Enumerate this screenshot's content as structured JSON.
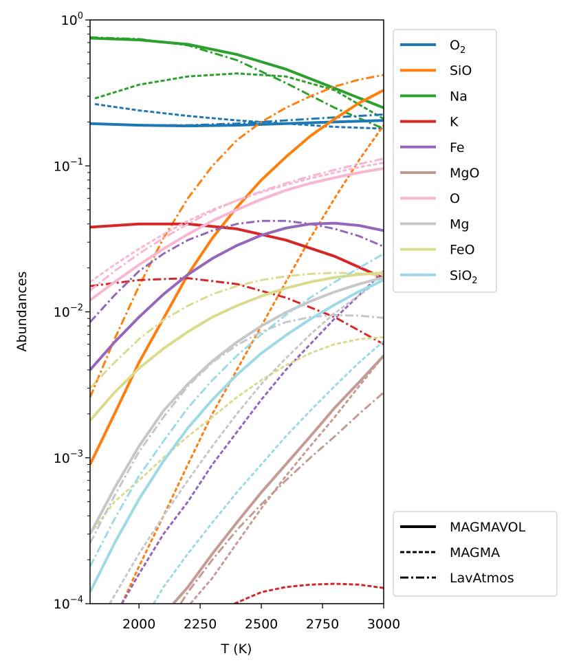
{
  "chart_data": {
    "type": "line",
    "title": "",
    "xlabel": "T (K)",
    "ylabel": "Abundances",
    "xlim": [
      1800,
      3000
    ],
    "ylim": [
      0.0001,
      1
    ],
    "yscale": "log",
    "grid": false,
    "x_ticks": [
      2000,
      2250,
      2500,
      2750,
      3000
    ],
    "x_tick_labels": [
      "2000",
      "2250",
      "2500",
      "2750",
      "3000"
    ],
    "y_ticks": [
      {
        "value": 1,
        "base": "10",
        "exp": "0"
      },
      {
        "value": 0.1,
        "base": "10",
        "exp": "−1"
      },
      {
        "value": 0.01,
        "base": "10",
        "exp": "−2"
      },
      {
        "value": 0.001,
        "base": "10",
        "exp": "−3"
      },
      {
        "value": 0.0001,
        "base": "10",
        "exp": "−4"
      }
    ],
    "species_legend": {
      "placement": "upper-right-outside",
      "entries": [
        {
          "key": "O2",
          "base": "O",
          "sub": "2",
          "color": "#1f77b4"
        },
        {
          "key": "SiO",
          "base": "SiO",
          "sub": "",
          "color": "#ff7f0e"
        },
        {
          "key": "Na",
          "base": "Na",
          "sub": "",
          "color": "#2ca02c"
        },
        {
          "key": "K",
          "base": "K",
          "sub": "",
          "color": "#d62728"
        },
        {
          "key": "Fe",
          "base": "Fe",
          "sub": "",
          "color": "#9467bd"
        },
        {
          "key": "MgO",
          "base": "MgO",
          "sub": "",
          "color": "#c49c94"
        },
        {
          "key": "O",
          "base": "O",
          "sub": "",
          "color": "#f7b6d2"
        },
        {
          "key": "Mg",
          "base": "Mg",
          "sub": "",
          "color": "#c7c7c7"
        },
        {
          "key": "FeO",
          "base": "FeO",
          "sub": "",
          "color": "#dbdb8d"
        },
        {
          "key": "SiO2",
          "base": "SiO",
          "sub": "2",
          "color": "#9edae5"
        }
      ]
    },
    "model_legend": {
      "placement": "lower-right-outside",
      "entries": [
        {
          "name": "MAGMAVOL",
          "style": "solid"
        },
        {
          "name": "MAGMA",
          "style": "dashed"
        },
        {
          "name": "LavAtmos",
          "style": "dashdot"
        }
      ]
    },
    "series": [
      {
        "species": "Na",
        "model": "MAGMAVOL",
        "x": [
          1800,
          2000,
          2200,
          2400,
          2600,
          2800,
          3000
        ],
        "y": [
          0.75,
          0.73,
          0.68,
          0.58,
          0.46,
          0.34,
          0.25
        ]
      },
      {
        "species": "Na",
        "model": "MAGMA",
        "x": [
          1820,
          2000,
          2200,
          2400,
          2600,
          2800,
          3000
        ],
        "y": [
          0.29,
          0.36,
          0.41,
          0.43,
          0.41,
          0.33,
          0.21
        ]
      },
      {
        "species": "Na",
        "model": "LavAtmos",
        "x": [
          1800,
          2000,
          2200,
          2400,
          2600,
          2800,
          3000
        ],
        "y": [
          0.76,
          0.74,
          0.67,
          0.53,
          0.37,
          0.25,
          0.18
        ]
      },
      {
        "species": "O2",
        "model": "MAGMAVOL",
        "x": [
          1800,
          2000,
          2200,
          2400,
          2600,
          2800,
          3000
        ],
        "y": [
          0.195,
          0.19,
          0.188,
          0.19,
          0.195,
          0.2,
          0.205
        ]
      },
      {
        "species": "O2",
        "model": "MAGMA",
        "x": [
          1820,
          2000,
          2200,
          2400,
          2600,
          2800,
          3000
        ],
        "y": [
          0.265,
          0.24,
          0.22,
          0.205,
          0.195,
          0.185,
          0.18
        ]
      },
      {
        "species": "O2",
        "model": "LavAtmos",
        "x": [
          1800,
          2000,
          2200,
          2400,
          2600,
          2800,
          3000
        ],
        "y": [
          0.195,
          0.19,
          0.19,
          0.195,
          0.205,
          0.215,
          0.225
        ]
      },
      {
        "species": "SiO",
        "model": "MAGMAVOL",
        "x": [
          1800,
          1900,
          2000,
          2100,
          2200,
          2300,
          2400,
          2500,
          2600,
          2700,
          2800,
          2900,
          3000
        ],
        "y": [
          0.0009,
          0.002,
          0.0045,
          0.009,
          0.018,
          0.032,
          0.052,
          0.08,
          0.115,
          0.16,
          0.21,
          0.27,
          0.33
        ]
      },
      {
        "species": "SiO",
        "model": "MAGMA",
        "x": [
          1930,
          2000,
          2100,
          2200,
          2300,
          2400,
          2500,
          2600,
          2700,
          2800,
          2900,
          3000
        ],
        "y": [
          0.0001,
          0.00018,
          0.0004,
          0.0009,
          0.002,
          0.004,
          0.008,
          0.016,
          0.032,
          0.06,
          0.11,
          0.19
        ]
      },
      {
        "species": "SiO",
        "model": "LavAtmos",
        "x": [
          1800,
          1900,
          2000,
          2100,
          2200,
          2300,
          2400,
          2500,
          2600,
          2700,
          2800,
          2900,
          3000
        ],
        "y": [
          0.0026,
          0.0065,
          0.015,
          0.032,
          0.06,
          0.1,
          0.15,
          0.2,
          0.25,
          0.3,
          0.35,
          0.39,
          0.42
        ]
      },
      {
        "species": "K",
        "model": "MAGMAVOL",
        "x": [
          1800,
          2000,
          2200,
          2400,
          2600,
          2800,
          3000
        ],
        "y": [
          0.038,
          0.04,
          0.04,
          0.037,
          0.031,
          0.024,
          0.017
        ]
      },
      {
        "species": "K",
        "model": "MAGMA",
        "x": [
          2390,
          2500,
          2600,
          2700,
          2800,
          2900,
          3000
        ],
        "y": [
          0.0001,
          0.00012,
          0.00013,
          0.000135,
          0.000137,
          0.000135,
          0.000128
        ]
      },
      {
        "species": "K",
        "model": "LavAtmos",
        "x": [
          1800,
          2000,
          2200,
          2400,
          2600,
          2800,
          3000
        ],
        "y": [
          0.015,
          0.0165,
          0.017,
          0.0155,
          0.0125,
          0.0092,
          0.006
        ]
      },
      {
        "species": "Fe",
        "model": "MAGMAVOL",
        "x": [
          1800,
          1900,
          2000,
          2100,
          2200,
          2300,
          2400,
          2500,
          2600,
          2700,
          2800,
          2900,
          3000
        ],
        "y": [
          0.004,
          0.0062,
          0.0092,
          0.0132,
          0.018,
          0.0232,
          0.0285,
          0.0335,
          0.0375,
          0.04,
          0.0405,
          0.039,
          0.036
        ]
      },
      {
        "species": "Fe",
        "model": "MAGMA",
        "x": [
          1930,
          2000,
          2100,
          2200,
          2300,
          2400,
          2500,
          2600,
          2700,
          2800,
          2900,
          3000
        ],
        "y": [
          0.0001,
          0.00016,
          0.0003,
          0.0005,
          0.0009,
          0.0015,
          0.0025,
          0.004,
          0.006,
          0.009,
          0.013,
          0.019
        ]
      },
      {
        "species": "Fe",
        "model": "LavAtmos",
        "x": [
          1800,
          1900,
          2000,
          2100,
          2200,
          2300,
          2400,
          2500,
          2600,
          2700,
          2800,
          2900,
          3000
        ],
        "y": [
          0.0085,
          0.013,
          0.019,
          0.025,
          0.031,
          0.036,
          0.04,
          0.042,
          0.042,
          0.04,
          0.037,
          0.033,
          0.028
        ]
      },
      {
        "species": "O",
        "model": "MAGMAVOL",
        "x": [
          1800,
          1900,
          2000,
          2100,
          2200,
          2300,
          2400,
          2500,
          2600,
          2700,
          2800,
          2900,
          3000
        ],
        "y": [
          0.012,
          0.016,
          0.021,
          0.027,
          0.034,
          0.042,
          0.05,
          0.059,
          0.068,
          0.076,
          0.083,
          0.09,
          0.096
        ]
      },
      {
        "species": "O",
        "model": "MAGMA",
        "x": [
          1800,
          1900,
          2000,
          2100,
          2200,
          2300,
          2400,
          2500,
          2600,
          2700,
          2800,
          2900,
          3000
        ],
        "y": [
          0.016,
          0.021,
          0.027,
          0.034,
          0.042,
          0.05,
          0.058,
          0.066,
          0.074,
          0.082,
          0.09,
          0.098,
          0.105
        ]
      },
      {
        "species": "O",
        "model": "LavAtmos",
        "x": [
          1800,
          1900,
          2000,
          2100,
          2200,
          2300,
          2400,
          2500,
          2600,
          2700,
          2800,
          2900,
          3000
        ],
        "y": [
          0.014,
          0.019,
          0.025,
          0.032,
          0.04,
          0.049,
          0.058,
          0.067,
          0.076,
          0.085,
          0.094,
          0.103,
          0.112
        ]
      },
      {
        "species": "FeO",
        "model": "MAGMAVOL",
        "x": [
          1800,
          1900,
          2000,
          2100,
          2200,
          2300,
          2400,
          2500,
          2600,
          2700,
          2800,
          2900,
          3000
        ],
        "y": [
          0.0018,
          0.0028,
          0.0041,
          0.0056,
          0.0073,
          0.0092,
          0.011,
          0.0128,
          0.0145,
          0.016,
          0.0172,
          0.018,
          0.0185
        ]
      },
      {
        "species": "FeO",
        "model": "MAGMA",
        "x": [
          1800,
          1900,
          2000,
          2100,
          2200,
          2300,
          2400,
          2500,
          2600,
          2700,
          2800,
          2900,
          3000
        ],
        "y": [
          0.0003,
          0.0005,
          0.0007,
          0.001,
          0.0014,
          0.0019,
          0.0026,
          0.0034,
          0.0043,
          0.0052,
          0.006,
          0.0065,
          0.0067
        ]
      },
      {
        "species": "FeO",
        "model": "LavAtmos",
        "x": [
          1800,
          1900,
          2000,
          2100,
          2200,
          2300,
          2400,
          2500,
          2600,
          2700,
          2800,
          2900,
          3000
        ],
        "y": [
          0.003,
          0.0045,
          0.0065,
          0.0088,
          0.011,
          0.0132,
          0.015,
          0.0165,
          0.0175,
          0.0182,
          0.0185,
          0.0183,
          0.0178
        ]
      },
      {
        "species": "Mg",
        "model": "MAGMAVOL",
        "x": [
          1800,
          1900,
          2000,
          2100,
          2200,
          2300,
          2400,
          2500,
          2600,
          2700,
          2800,
          2900,
          3000
        ],
        "y": [
          0.0003,
          0.00062,
          0.0012,
          0.0021,
          0.0032,
          0.0046,
          0.0062,
          0.008,
          0.0099,
          0.0118,
          0.0137,
          0.0155,
          0.0172
        ]
      },
      {
        "species": "Mg",
        "model": "MAGMA",
        "x": [
          1880,
          2000,
          2100,
          2200,
          2300,
          2400,
          2500,
          2600,
          2700,
          2800,
          2900,
          3000
        ],
        "y": [
          0.0001,
          0.00022,
          0.0004,
          0.0007,
          0.0012,
          0.002,
          0.0032,
          0.0048,
          0.007,
          0.0098,
          0.013,
          0.017
        ]
      },
      {
        "species": "Mg",
        "model": "LavAtmos",
        "x": [
          1800,
          1900,
          2000,
          2100,
          2200,
          2300,
          2400,
          2500,
          2600,
          2700,
          2800,
          2900,
          3000
        ],
        "y": [
          0.00026,
          0.00055,
          0.0011,
          0.0019,
          0.0031,
          0.0045,
          0.0059,
          0.0073,
          0.0085,
          0.0092,
          0.0095,
          0.0094,
          0.0091
        ]
      },
      {
        "species": "SiO2",
        "model": "MAGMAVOL",
        "x": [
          1800,
          1900,
          2000,
          2100,
          2200,
          2300,
          2400,
          2500,
          2600,
          2700,
          2800,
          2900,
          3000
        ],
        "y": [
          0.00012,
          0.00026,
          0.00052,
          0.00095,
          0.0016,
          0.0025,
          0.0037,
          0.0052,
          0.0069,
          0.0089,
          0.0112,
          0.0138,
          0.0165
        ]
      },
      {
        "species": "SiO2",
        "model": "MAGMA",
        "x": [
          2060,
          2100,
          2200,
          2300,
          2400,
          2500,
          2600,
          2700,
          2800,
          2900,
          3000
        ],
        "y": [
          0.0001,
          0.00013,
          0.00022,
          0.00036,
          0.00058,
          0.0009,
          0.0014,
          0.0021,
          0.0031,
          0.0045,
          0.0063
        ]
      },
      {
        "species": "SiO2",
        "model": "LavAtmos",
        "x": [
          1800,
          1900,
          2000,
          2100,
          2200,
          2300,
          2400,
          2500,
          2600,
          2700,
          2800,
          2900,
          3000
        ],
        "y": [
          0.00018,
          0.00038,
          0.00075,
          0.0013,
          0.0022,
          0.0034,
          0.005,
          0.007,
          0.0095,
          0.0125,
          0.016,
          0.02,
          0.025
        ]
      },
      {
        "species": "MgO",
        "model": "MAGMAVOL",
        "x": [
          2140,
          2200,
          2300,
          2400,
          2500,
          2600,
          2700,
          2800,
          2900,
          3000
        ],
        "y": [
          0.0001,
          0.00013,
          0.00022,
          0.00036,
          0.00058,
          0.0009,
          0.0014,
          0.0022,
          0.0033,
          0.005
        ]
      },
      {
        "species": "MgO",
        "model": "MAGMA",
        "x": [
          2210,
          2300,
          2400,
          2500,
          2600,
          2700,
          2800,
          2900,
          3000
        ],
        "y": [
          0.0001,
          0.00015,
          0.00026,
          0.00045,
          0.00075,
          0.0012,
          0.0019,
          0.0031,
          0.005
        ]
      },
      {
        "species": "MgO",
        "model": "LavAtmos",
        "x": [
          2170,
          2200,
          2300,
          2400,
          2500,
          2600,
          2700,
          2800,
          2900,
          3000
        ],
        "y": [
          0.0001,
          0.00012,
          0.0002,
          0.00032,
          0.00048,
          0.0007,
          0.001,
          0.0014,
          0.002,
          0.0028
        ]
      }
    ]
  }
}
